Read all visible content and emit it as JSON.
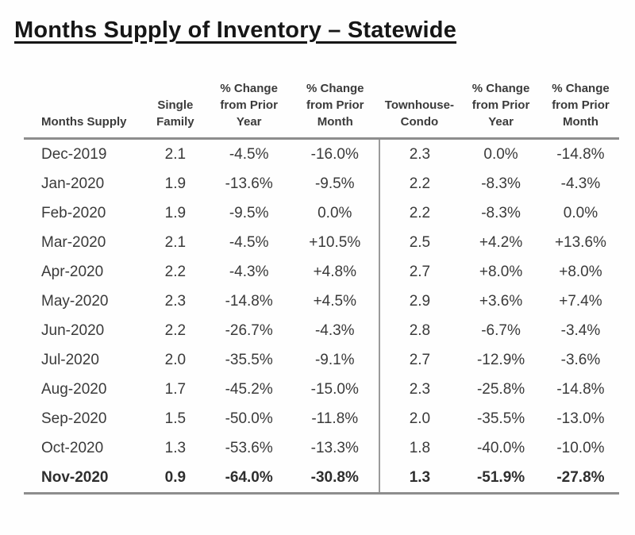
{
  "page_title": "Months Supply of Inventory – Statewide",
  "colors": {
    "text": "#3a3a3a",
    "title": "#161616",
    "rule_gray": "#8d8d8d",
    "divider_gray": "#9a9a9a",
    "background": "#fefefe"
  },
  "table": {
    "headers": [
      "Months Supply",
      "Single\nFamily",
      "% Change\nfrom Prior\nYear",
      "% Change\nfrom Prior\nMonth",
      "Townhouse-\nCondo",
      "% Change\nfrom Prior\nYear",
      "% Change\nfrom Prior\nMonth"
    ],
    "rows": [
      {
        "month": "Dec-2019",
        "sf": "2.1",
        "sf_yoy": "-4.5%",
        "sf_mom": "-16.0%",
        "tc": "2.3",
        "tc_yoy": "0.0%",
        "tc_mom": "-14.8%",
        "emphasis": false
      },
      {
        "month": "Jan-2020",
        "sf": "1.9",
        "sf_yoy": "-13.6%",
        "sf_mom": "-9.5%",
        "tc": "2.2",
        "tc_yoy": "-8.3%",
        "tc_mom": "-4.3%",
        "emphasis": false
      },
      {
        "month": "Feb-2020",
        "sf": "1.9",
        "sf_yoy": "-9.5%",
        "sf_mom": "0.0%",
        "tc": "2.2",
        "tc_yoy": "-8.3%",
        "tc_mom": "0.0%",
        "emphasis": false
      },
      {
        "month": "Mar-2020",
        "sf": "2.1",
        "sf_yoy": "-4.5%",
        "sf_mom": "+10.5%",
        "tc": "2.5",
        "tc_yoy": "+4.2%",
        "tc_mom": "+13.6%",
        "emphasis": false
      },
      {
        "month": "Apr-2020",
        "sf": "2.2",
        "sf_yoy": "-4.3%",
        "sf_mom": "+4.8%",
        "tc": "2.7",
        "tc_yoy": "+8.0%",
        "tc_mom": "+8.0%",
        "emphasis": false
      },
      {
        "month": "May-2020",
        "sf": "2.3",
        "sf_yoy": "-14.8%",
        "sf_mom": "+4.5%",
        "tc": "2.9",
        "tc_yoy": "+3.6%",
        "tc_mom": "+7.4%",
        "emphasis": false
      },
      {
        "month": "Jun-2020",
        "sf": "2.2",
        "sf_yoy": "-26.7%",
        "sf_mom": "-4.3%",
        "tc": "2.8",
        "tc_yoy": "-6.7%",
        "tc_mom": "-3.4%",
        "emphasis": false
      },
      {
        "month": "Jul-2020",
        "sf": "2.0",
        "sf_yoy": "-35.5%",
        "sf_mom": "-9.1%",
        "tc": "2.7",
        "tc_yoy": "-12.9%",
        "tc_mom": "-3.6%",
        "emphasis": false
      },
      {
        "month": "Aug-2020",
        "sf": "1.7",
        "sf_yoy": "-45.2%",
        "sf_mom": "-15.0%",
        "tc": "2.3",
        "tc_yoy": "-25.8%",
        "tc_mom": "-14.8%",
        "emphasis": false
      },
      {
        "month": "Sep-2020",
        "sf": "1.5",
        "sf_yoy": "-50.0%",
        "sf_mom": "-11.8%",
        "tc": "2.0",
        "tc_yoy": "-35.5%",
        "tc_mom": "-13.0%",
        "emphasis": false
      },
      {
        "month": "Oct-2020",
        "sf": "1.3",
        "sf_yoy": "-53.6%",
        "sf_mom": "-13.3%",
        "tc": "1.8",
        "tc_yoy": "-40.0%",
        "tc_mom": "-10.0%",
        "emphasis": false
      },
      {
        "month": "Nov-2020",
        "sf": "0.9",
        "sf_yoy": "-64.0%",
        "sf_mom": "-30.8%",
        "tc": "1.3",
        "tc_yoy": "-51.9%",
        "tc_mom": "-27.8%",
        "emphasis": true
      }
    ]
  }
}
